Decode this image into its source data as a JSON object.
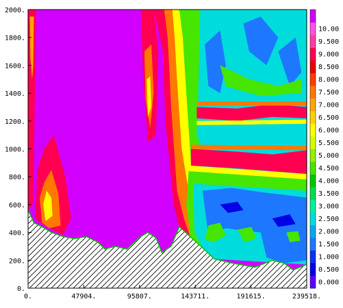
{
  "chart_data": {
    "type": "heatmap",
    "title": "",
    "xlabel": "",
    "ylabel": "",
    "xlim": [
      0,
      239518
    ],
    "ylim": [
      0,
      2000
    ],
    "x_ticks": [
      {
        "value": 0,
        "label": "0."
      },
      {
        "value": 47904,
        "label": "47904."
      },
      {
        "value": 95807,
        "label": "95807."
      },
      {
        "value": 143711,
        "label": "143711."
      },
      {
        "value": 191615,
        "label": "191615."
      },
      {
        "value": 239518,
        "label": "239518."
      }
    ],
    "y_ticks": [
      {
        "value": 0,
        "label": "0."
      },
      {
        "value": 200,
        "label": "200."
      },
      {
        "value": 400,
        "label": "400."
      },
      {
        "value": 600,
        "label": "600."
      },
      {
        "value": 800,
        "label": "800."
      },
      {
        "value": 1000,
        "label": "1000."
      },
      {
        "value": 1200,
        "label": "1200."
      },
      {
        "value": 1400,
        "label": "1400."
      },
      {
        "value": 1600,
        "label": "1600."
      },
      {
        "value": 1800,
        "label": "1800."
      },
      {
        "value": 2000,
        "label": "2000."
      }
    ],
    "colorbar": {
      "levels": [
        {
          "label": "0.000",
          "color": "#5a00ff"
        },
        {
          "label": "0.500",
          "color": "#0000e6"
        },
        {
          "label": "1.000",
          "color": "#0a32f0"
        },
        {
          "label": "1.500",
          "color": "#1e78ff"
        },
        {
          "label": "2.000",
          "color": "#00aaf0"
        },
        {
          "label": "2.500",
          "color": "#00dcdc"
        },
        {
          "label": "3.000",
          "color": "#00f0a0"
        },
        {
          "label": "3.500",
          "color": "#00dc50"
        },
        {
          "label": "4.000",
          "color": "#00c800"
        },
        {
          "label": "4.500",
          "color": "#46e600"
        },
        {
          "label": "5.000",
          "color": "#96f000"
        },
        {
          "label": "5.500",
          "color": "#d2ff00"
        },
        {
          "label": "6.000",
          "color": "#ffff00"
        },
        {
          "label": "6.500",
          "color": "#ffd200"
        },
        {
          "label": "7.000",
          "color": "#ffa500"
        },
        {
          "label": "7.500",
          "color": "#ff7800"
        },
        {
          "label": "8.000",
          "color": "#ff3c00"
        },
        {
          "label": "8.500",
          "color": "#e60000"
        },
        {
          "label": "9.000",
          "color": "#ff0050"
        },
        {
          "label": "9.500",
          "color": "#ff3ca0"
        },
        {
          "label": "10.00",
          "color": "#ff50e6"
        },
        {
          "label": "",
          "color": "#d200ff"
        }
      ]
    },
    "terrain_profile": [
      {
        "x": 0,
        "y": 560
      },
      {
        "x": 5000,
        "y": 470
      },
      {
        "x": 12000,
        "y": 440
      },
      {
        "x": 20000,
        "y": 400
      },
      {
        "x": 30000,
        "y": 370
      },
      {
        "x": 40000,
        "y": 355
      },
      {
        "x": 50000,
        "y": 370
      },
      {
        "x": 60000,
        "y": 330
      },
      {
        "x": 66000,
        "y": 280
      },
      {
        "x": 75000,
        "y": 300
      },
      {
        "x": 85000,
        "y": 280
      },
      {
        "x": 95000,
        "y": 360
      },
      {
        "x": 103000,
        "y": 400
      },
      {
        "x": 110000,
        "y": 360
      },
      {
        "x": 115000,
        "y": 255
      },
      {
        "x": 123000,
        "y": 300
      },
      {
        "x": 130000,
        "y": 440
      },
      {
        "x": 138000,
        "y": 380
      },
      {
        "x": 150000,
        "y": 290
      },
      {
        "x": 160000,
        "y": 210
      },
      {
        "x": 175000,
        "y": 180
      },
      {
        "x": 195000,
        "y": 150
      },
      {
        "x": 210000,
        "y": 200
      },
      {
        "x": 220000,
        "y": 180
      },
      {
        "x": 228000,
        "y": 130
      },
      {
        "x": 239518,
        "y": 170
      }
    ],
    "regions": [
      {
        "name": "uniform-high",
        "color": "#d200ff",
        "polygon": [
          [
            0,
            2000
          ],
          [
            239518,
            2000
          ],
          [
            239518,
            0
          ],
          [
            0,
            0
          ]
        ]
      },
      {
        "name": "left-column-red",
        "color": "#ff0050",
        "polygon": [
          [
            0,
            2000
          ],
          [
            7000,
            2000
          ],
          [
            6000,
            1500
          ],
          [
            5000,
            900
          ],
          [
            4000,
            600
          ],
          [
            0,
            560
          ]
        ]
      },
      {
        "name": "left-column-orange",
        "color": "#ffa500",
        "polygon": [
          [
            1500,
            1950
          ],
          [
            5000,
            1950
          ],
          [
            4500,
            1600
          ],
          [
            3500,
            1500
          ],
          [
            2000,
            1650
          ]
        ]
      },
      {
        "name": "left-low-red",
        "color": "#ff0050",
        "polygon": [
          [
            8000,
            850
          ],
          [
            14000,
            1000
          ],
          [
            22000,
            1100
          ],
          [
            32000,
            800
          ],
          [
            37000,
            500
          ],
          [
            30000,
            380
          ],
          [
            14000,
            450
          ],
          [
            6000,
            500
          ]
        ]
      },
      {
        "name": "left-low-orange",
        "color": "#ff7800",
        "polygon": [
          [
            10000,
            650
          ],
          [
            14000,
            760
          ],
          [
            20000,
            850
          ],
          [
            26000,
            680
          ],
          [
            28000,
            450
          ],
          [
            18000,
            430
          ],
          [
            12000,
            470
          ]
        ]
      },
      {
        "name": "left-low-yellow",
        "color": "#ffff00",
        "polygon": [
          [
            13000,
            600
          ],
          [
            16000,
            700
          ],
          [
            20000,
            650
          ],
          [
            21000,
            520
          ],
          [
            15000,
            480
          ]
        ]
      },
      {
        "name": "mid-col-red",
        "color": "#ff0050",
        "polygon": [
          [
            97000,
            2000
          ],
          [
            108000,
            2000
          ],
          [
            112000,
            1700
          ],
          [
            110000,
            1100
          ],
          [
            103000,
            1050
          ],
          [
            99000,
            1500
          ]
        ]
      },
      {
        "name": "mid-col-orange",
        "color": "#ff7800",
        "polygon": [
          [
            100000,
            1700
          ],
          [
            106000,
            1750
          ],
          [
            108000,
            1400
          ],
          [
            105000,
            1150
          ],
          [
            101000,
            1350
          ]
        ]
      },
      {
        "name": "mid-col-yellow",
        "color": "#ffff00",
        "polygon": [
          [
            102000,
            1500
          ],
          [
            105000,
            1520
          ],
          [
            106000,
            1300
          ],
          [
            103000,
            1230
          ]
        ]
      },
      {
        "name": "right-red-wall",
        "color": "#ff0050",
        "polygon": [
          [
            108000,
            2000
          ],
          [
            239518,
            2000
          ],
          [
            239518,
            170
          ],
          [
            150000,
            290
          ],
          [
            140000,
            350
          ],
          [
            130000,
            440
          ],
          [
            125000,
            600
          ],
          [
            118000,
            1200
          ],
          [
            116000,
            1700
          ]
        ]
      },
      {
        "name": "right-orange",
        "color": "#ff7800",
        "polygon": [
          [
            117000,
            2000
          ],
          [
            239518,
            2000
          ],
          [
            239518,
            170
          ],
          [
            150000,
            290
          ],
          [
            140000,
            350
          ],
          [
            134000,
            500
          ],
          [
            128000,
            700
          ],
          [
            123000,
            1300
          ],
          [
            120000,
            1800
          ]
        ]
      },
      {
        "name": "right-yellow",
        "color": "#ffff00",
        "polygon": [
          [
            124000,
            2000
          ],
          [
            239518,
            2000
          ],
          [
            239518,
            170
          ],
          [
            150000,
            290
          ],
          [
            142000,
            400
          ],
          [
            138000,
            700
          ],
          [
            132000,
            1000
          ],
          [
            128000,
            1500
          ],
          [
            126000,
            1800
          ]
        ]
      },
      {
        "name": "right-green",
        "color": "#46e600",
        "polygon": [
          [
            130000,
            2000
          ],
          [
            239518,
            2000
          ],
          [
            239518,
            170
          ],
          [
            150000,
            290
          ],
          [
            145000,
            500
          ],
          [
            140000,
            900
          ],
          [
            136000,
            1400
          ],
          [
            133000,
            1800
          ]
        ]
      },
      {
        "name": "right-cyan",
        "color": "#00dcdc",
        "polygon": [
          [
            148000,
            2000
          ],
          [
            239518,
            2000
          ],
          [
            239518,
            170
          ],
          [
            160000,
            210
          ],
          [
            150000,
            350
          ],
          [
            148000,
            700
          ],
          [
            146000,
            1300
          ]
        ]
      },
      {
        "name": "upper-blue-1",
        "color": "#1e78ff",
        "polygon": [
          [
            152000,
            1750
          ],
          [
            165000,
            1850
          ],
          [
            170000,
            1600
          ],
          [
            165000,
            1400
          ],
          [
            155000,
            1450
          ]
        ]
      },
      {
        "name": "upper-blue-2",
        "color": "#1e78ff",
        "polygon": [
          [
            185000,
            1900
          ],
          [
            200000,
            1950
          ],
          [
            215000,
            1800
          ],
          [
            205000,
            1600
          ],
          [
            190000,
            1700
          ]
        ]
      },
      {
        "name": "upper-blue-3",
        "color": "#1e78ff",
        "polygon": [
          [
            215000,
            1700
          ],
          [
            230000,
            1800
          ],
          [
            235000,
            1550
          ],
          [
            225000,
            1450
          ]
        ]
      },
      {
        "name": "upper-green",
        "color": "#46e600",
        "polygon": [
          [
            165000,
            1600
          ],
          [
            190000,
            1500
          ],
          [
            215000,
            1450
          ],
          [
            235000,
            1500
          ],
          [
            235000,
            1400
          ],
          [
            200000,
            1380
          ],
          [
            170000,
            1450
          ]
        ]
      },
      {
        "name": "band-1250-red",
        "color": "#ff0050",
        "polygon": [
          [
            145000,
            1300
          ],
          [
            180000,
            1290
          ],
          [
            210000,
            1320
          ],
          [
            239518,
            1300
          ],
          [
            239518,
            1220
          ],
          [
            210000,
            1230
          ],
          [
            180000,
            1200
          ],
          [
            145000,
            1220
          ]
        ]
      },
      {
        "name": "band-1250-orange",
        "color": "#ff7800",
        "polygon": [
          [
            145000,
            1340
          ],
          [
            239518,
            1340
          ],
          [
            239518,
            1310
          ],
          [
            145000,
            1310
          ]
        ]
      },
      {
        "name": "band-1250-yellow",
        "color": "#ffff00",
        "polygon": [
          [
            145000,
            1200
          ],
          [
            239518,
            1210
          ],
          [
            239518,
            1180
          ],
          [
            145000,
            1170
          ]
        ]
      },
      {
        "name": "mid-cyan",
        "color": "#00dcdc",
        "polygon": [
          [
            145000,
            1170
          ],
          [
            239518,
            1180
          ],
          [
            239518,
            1060
          ],
          [
            145000,
            1080
          ]
        ]
      },
      {
        "name": "band-900-red",
        "color": "#ff0050",
        "polygon": [
          [
            140000,
            1000
          ],
          [
            180000,
            980
          ],
          [
            210000,
            960
          ],
          [
            239518,
            990
          ],
          [
            239518,
            820
          ],
          [
            210000,
            840
          ],
          [
            180000,
            860
          ],
          [
            140000,
            880
          ]
        ]
      },
      {
        "name": "band-900-orange",
        "color": "#ff7800",
        "polygon": [
          [
            140000,
            1030
          ],
          [
            239518,
            1020
          ],
          [
            239518,
            990
          ],
          [
            140000,
            1000
          ]
        ]
      },
      {
        "name": "band-900-yellow",
        "color": "#ffff00",
        "polygon": [
          [
            138000,
            880
          ],
          [
            239518,
            820
          ],
          [
            239518,
            780
          ],
          [
            138000,
            840
          ]
        ]
      },
      {
        "name": "low-green",
        "color": "#46e600",
        "polygon": [
          [
            138000,
            840
          ],
          [
            239518,
            780
          ],
          [
            239518,
            170
          ],
          [
            150000,
            290
          ],
          [
            140000,
            350
          ],
          [
            136000,
            600
          ]
        ]
      },
      {
        "name": "low-cyan",
        "color": "#00dcdc",
        "polygon": [
          [
            142000,
            750
          ],
          [
            239518,
            700
          ],
          [
            239518,
            170
          ],
          [
            160000,
            210
          ],
          [
            150000,
            290
          ],
          [
            143000,
            400
          ]
        ]
      },
      {
        "name": "low-blue",
        "color": "#1e78ff",
        "polygon": [
          [
            150000,
            700
          ],
          [
            175000,
            720
          ],
          [
            200000,
            690
          ],
          [
            239518,
            650
          ],
          [
            239518,
            200
          ],
          [
            220000,
            180
          ],
          [
            205000,
            220
          ],
          [
            200000,
            400
          ],
          [
            170000,
            430
          ],
          [
            155000,
            380
          ]
        ]
      },
      {
        "name": "low-darkblue-1",
        "color": "#0000e6",
        "polygon": [
          [
            165000,
            600
          ],
          [
            180000,
            620
          ],
          [
            185000,
            560
          ],
          [
            172000,
            540
          ]
        ]
      },
      {
        "name": "low-darkblue-2",
        "color": "#0000e6",
        "polygon": [
          [
            210000,
            500
          ],
          [
            225000,
            530
          ],
          [
            230000,
            460
          ],
          [
            215000,
            440
          ]
        ]
      },
      {
        "name": "low-green-patch",
        "color": "#46e600",
        "polygon": [
          [
            155000,
            450
          ],
          [
            165000,
            470
          ],
          [
            170000,
            380
          ],
          [
            160000,
            330
          ],
          [
            152000,
            350
          ]
        ]
      },
      {
        "name": "low-green-patch-2",
        "color": "#46e600",
        "polygon": [
          [
            180000,
            420
          ],
          [
            192000,
            440
          ],
          [
            196000,
            360
          ],
          [
            186000,
            330
          ]
        ]
      },
      {
        "name": "low-green-patch-3",
        "color": "#46e600",
        "polygon": [
          [
            222000,
            400
          ],
          [
            232000,
            410
          ],
          [
            234000,
            340
          ],
          [
            225000,
            330
          ]
        ]
      }
    ]
  }
}
